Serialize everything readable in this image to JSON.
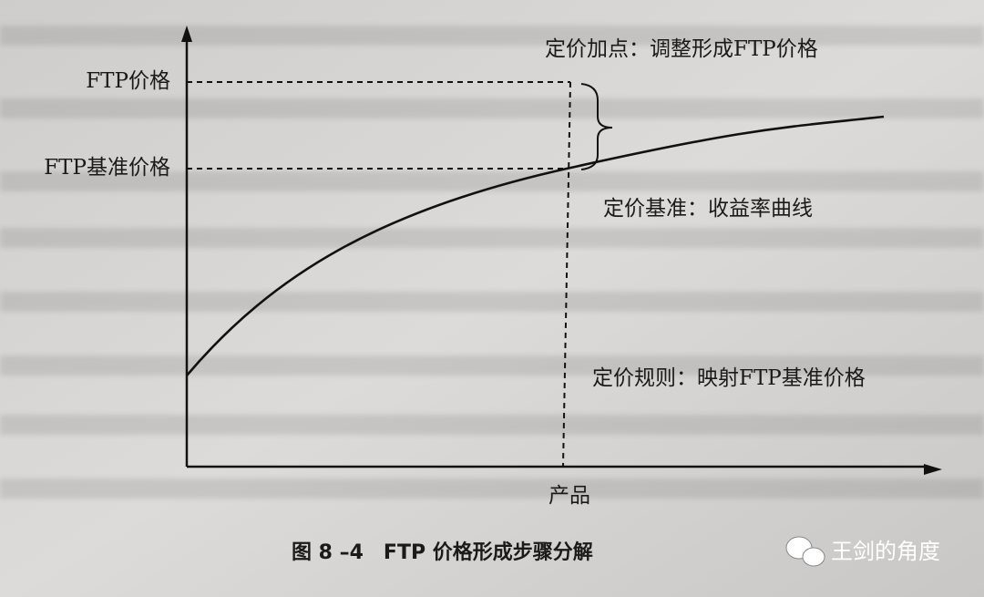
{
  "diagram": {
    "y_labels": {
      "ftp_price": "FTP价格",
      "ftp_base_price": "FTP基准价格"
    },
    "annotations": {
      "markup": "定价加点：调整形成FTP价格",
      "benchmark": "定价基准：收益率曲线",
      "rule": "定价规则：映射FTP基准价格"
    },
    "x_label": "产品",
    "caption": "图 8 –4　FTP 价格形成步骤分解"
  },
  "watermark": "王剑的角度"
}
